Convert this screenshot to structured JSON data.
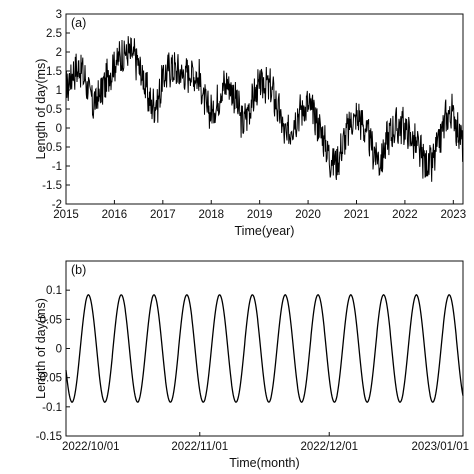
{
  "chart_data": [
    {
      "type": "line",
      "panel_label": "(a)",
      "xlabel": "Time(year)",
      "ylabel": "Length of day(ms)",
      "xlim": [
        2015,
        2023.2
      ],
      "ylim": [
        -2,
        3
      ],
      "x_ticks": [
        "2015",
        "2016",
        "2017",
        "2018",
        "2019",
        "2020",
        "2021",
        "2022",
        "2023"
      ],
      "y_ticks": [
        "3",
        "2.5",
        "2",
        "1.5",
        "1",
        "0.5",
        "0",
        "-0.5",
        "-1",
        "-1.5",
        "-2"
      ],
      "grid": false,
      "series": [
        {
          "color": "#000000",
          "x": [
            2015.0,
            2015.15,
            2015.3,
            2015.45,
            2015.55,
            2015.7,
            2015.85,
            2016.0,
            2016.15,
            2016.3,
            2016.45,
            2016.6,
            2016.75,
            2016.9,
            2017.0,
            2017.15,
            2017.3,
            2017.45,
            2017.6,
            2017.75,
            2017.9,
            2018.05,
            2018.2,
            2018.35,
            2018.5,
            2018.65,
            2018.8,
            2018.95,
            2019.1,
            2019.25,
            2019.4,
            2019.55,
            2019.7,
            2019.85,
            2020.0,
            2020.15,
            2020.3,
            2020.45,
            2020.6,
            2020.75,
            2020.9,
            2021.05,
            2021.2,
            2021.35,
            2021.5,
            2021.65,
            2021.8,
            2021.95,
            2022.1,
            2022.25,
            2022.4,
            2022.55,
            2022.7,
            2022.85,
            2023.0,
            2023.1,
            2023.2
          ],
          "y": [
            1.0,
            1.5,
            1.6,
            1.1,
            0.6,
            0.9,
            1.3,
            1.7,
            1.9,
            2.0,
            1.8,
            1.3,
            0.6,
            0.7,
            1.3,
            1.6,
            1.5,
            1.4,
            1.5,
            1.3,
            0.5,
            0.4,
            1.0,
            1.2,
            0.8,
            0.1,
            0.6,
            1.0,
            1.2,
            1.0,
            0.4,
            -0.3,
            0.2,
            0.5,
            0.6,
            0.3,
            -0.2,
            -0.8,
            -0.9,
            -0.3,
            0.2,
            0.3,
            -0.1,
            -0.6,
            -0.9,
            -0.2,
            0.0,
            0.1,
            -0.2,
            -0.5,
            -0.9,
            -1.0,
            -0.4,
            0.3,
            0.4,
            -0.1,
            -0.4
          ]
        }
      ]
    },
    {
      "type": "line",
      "panel_label": "(b)",
      "xlabel": "Time(month)",
      "ylabel": "Length of day(ms)",
      "xlim": [
        0,
        92
      ],
      "ylim": [
        -0.15,
        0.15
      ],
      "x_ticks": [
        {
          "label": "2022/10/01",
          "x": 0
        },
        {
          "label": "2022/11/01",
          "x": 31
        },
        {
          "label": "2022/12/01",
          "x": 61
        },
        {
          "label": "2023/01/01",
          "x": 92
        }
      ],
      "y_ticks": [
        "0.1",
        "0.05",
        "0",
        "-0.05",
        "-0.1",
        "-0.15"
      ],
      "grid": false,
      "series": [
        {
          "color": "#000000",
          "amplitude": 0.092,
          "period_days": 7.6,
          "phase_peak_day": 5.2
        }
      ]
    }
  ]
}
